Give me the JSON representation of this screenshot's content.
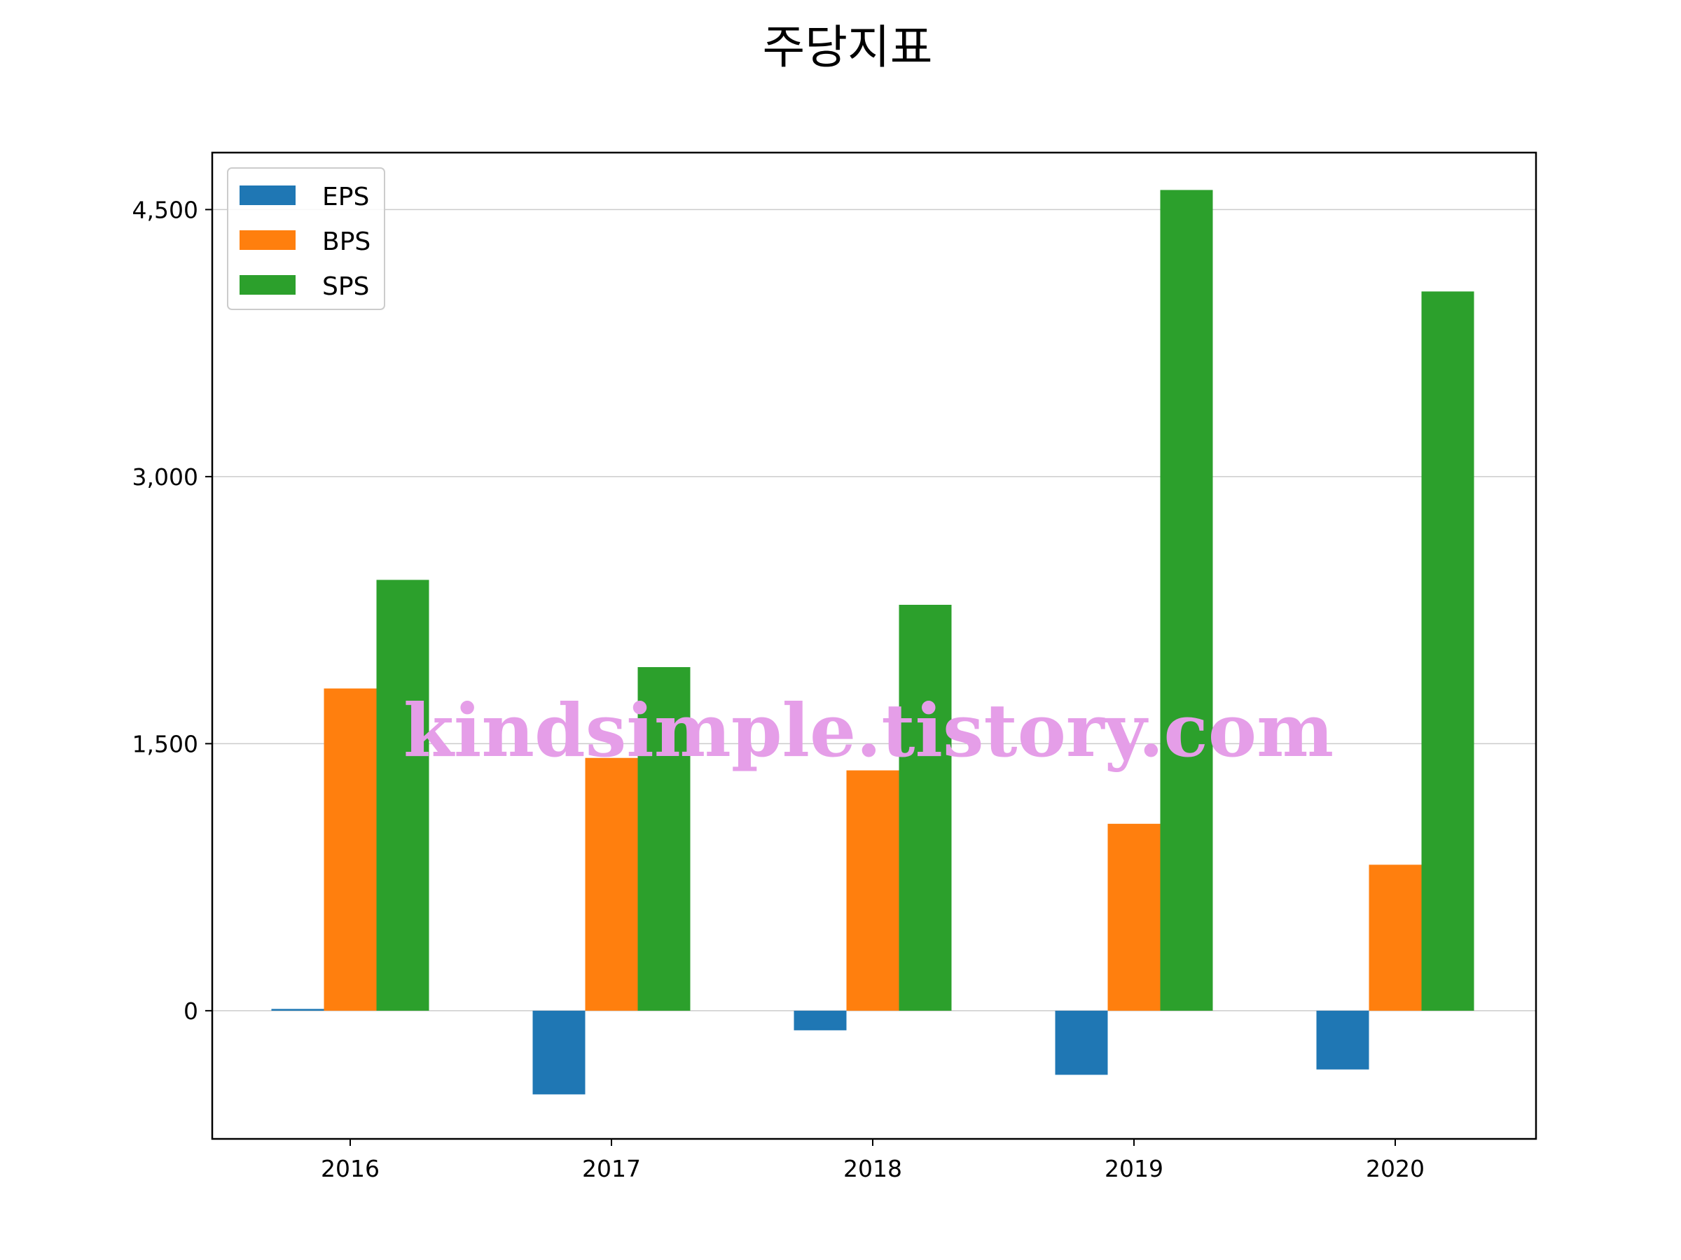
{
  "chart_data": {
    "type": "bar",
    "title": "주당지표",
    "categories": [
      "2016",
      "2017",
      "2018",
      "2019",
      "2020"
    ],
    "series": [
      {
        "name": "EPS",
        "color": "#1f77b4",
        "values": [
          10,
          -470,
          -110,
          -360,
          -330
        ]
      },
      {
        "name": "BPS",
        "color": "#ff7f0e",
        "values": [
          1810,
          1420,
          1350,
          1050,
          820
        ]
      },
      {
        "name": "SPS",
        "color": "#2ca02c",
        "values": [
          2420,
          1930,
          2280,
          4610,
          4040
        ]
      }
    ],
    "ylim": [
      -720,
      4820
    ],
    "yticks": [
      0,
      1500,
      3000,
      4500
    ],
    "ytick_labels": [
      "0",
      "1,500",
      "3,000",
      "4,500"
    ],
    "grid": "horizontal",
    "legend_position": "top-left",
    "xlabel": "",
    "ylabel": ""
  },
  "watermark": "kindsimple.tistory.com"
}
